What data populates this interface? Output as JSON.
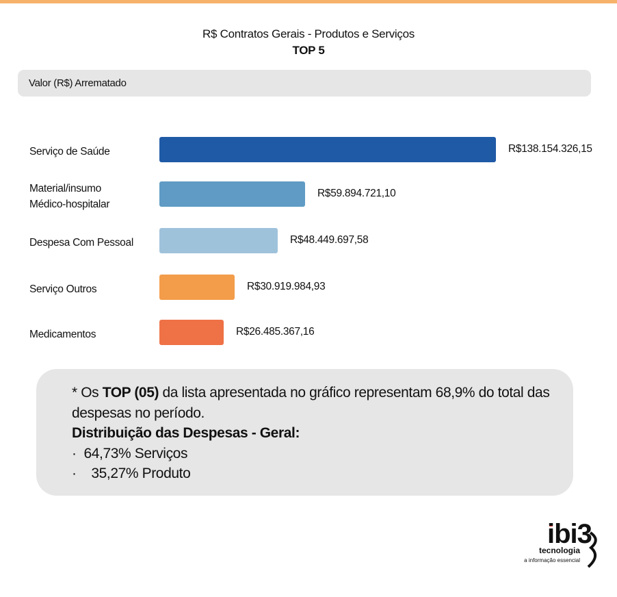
{
  "header": {
    "title": "R$ Contratos Gerais - Produtos e Serviços",
    "subtitle": "TOP 5",
    "metric_label": "Valor (R$) Arrematado"
  },
  "chart_data": {
    "type": "bar",
    "orientation": "horizontal",
    "title": "R$ Contratos Gerais - Produtos e Serviços",
    "subtitle": "TOP 5",
    "ylabel": "Valor (R$) Arrematado",
    "categories": [
      "Serviço de Saúde",
      "Material/insumo Médico-hospitalar",
      "Despesa Com Pessoal",
      "Serviço Outros",
      "Medicamentos"
    ],
    "category_lines": [
      [
        "Serviço de Saúde"
      ],
      [
        "Material/insumo",
        "Médico-hospitalar"
      ],
      [
        "Despesa Com Pessoal"
      ],
      [
        "Serviço Outros"
      ],
      [
        "Medicamentos"
      ]
    ],
    "values": [
      138154326.15,
      59894721.1,
      48449697.58,
      30919984.93,
      26485367.16
    ],
    "value_labels": [
      "R$138.154.326,15",
      "R$59.894.721,10",
      "R$48.449.697,58",
      "R$30.919.984,93",
      "R$26.485.367,16"
    ],
    "colors": [
      "#1f5aa6",
      "#5f9bc4",
      "#9fc2db",
      "#f39c4a",
      "#ef7146"
    ],
    "grid": false,
    "legend": "none"
  },
  "note": {
    "line1_prefix": "* Os ",
    "line1_bold": "TOP (05)",
    "line1_suffix": " da lista apresentada no gráfico representam 68,9% do total das",
    "line2": "despesas no período.",
    "distribution_title": "Distribuição das Despesas - Geral:",
    "bullet_char": "·",
    "items": [
      "64,73% Serviços",
      "35,27% Produto"
    ]
  },
  "logo": {
    "text": "ibi3",
    "subtitle": "tecnologia",
    "tagline": "a informação essencial",
    "accent": "#e0332f"
  }
}
